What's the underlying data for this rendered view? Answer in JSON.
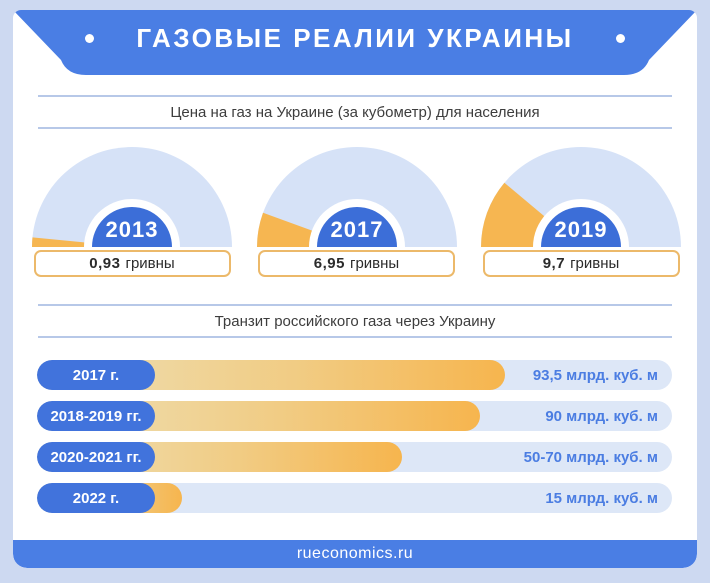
{
  "header": {
    "title": "ГАЗОВЫЕ РЕАЛИИ УКРАИНЫ"
  },
  "sections": {
    "prices": {
      "title": "Цена на газ на Украине (за кубометр) для населения",
      "gauges": [
        {
          "year": "2013",
          "value": "0,93",
          "unit": "гривны",
          "angle_deg": 5.5
        },
        {
          "year": "2017",
          "value": "6,95",
          "unit": "гривны",
          "angle_deg": 20
        },
        {
          "year": "2019",
          "value": "9,7",
          "unit": "гривны",
          "angle_deg": 40
        }
      ]
    },
    "transit": {
      "title": "Транзит российского газа через Украину",
      "bars": [
        {
          "label": "2017 г.",
          "value": "93,5 млрд. куб. м",
          "fill_pct": 73.7
        },
        {
          "label": "2018-2019 гг.",
          "value": "90 млрд. куб. м",
          "fill_pct": 69.8
        },
        {
          "label": "2020-2021 гг.",
          "value": "50-70 млрд. куб. м",
          "fill_pct": 57.5
        },
        {
          "label": "2022 г.",
          "value": "15 млрд. куб. м",
          "fill_pct": 22.8
        }
      ]
    }
  },
  "footer": {
    "site": "rueconomics.ru"
  },
  "colors": {
    "background": "#cdd9f1",
    "card": "#ffffff",
    "primary_blue": "#4a7ee4",
    "pill_blue": "#4173dc",
    "gauge_inner_blue": "#3c6ed8",
    "gauge_light_blue": "#d6e2f7",
    "track_light_blue": "#dde7f7",
    "orange": "#f6b54e",
    "orange_pale": "#ede0b6",
    "value_box_border": "#ecb96a",
    "divider": "#b7c8e8",
    "bar_value_text": "#4b7de2"
  },
  "chart_data": [
    {
      "type": "pie",
      "subtype": "semi-donut-gauges",
      "title": "Цена на газ на Украине (за кубометр) для населения",
      "categories": [
        "2013",
        "2017",
        "2019"
      ],
      "values": [
        0.93,
        6.95,
        9.7
      ],
      "value_labels": [
        "0,93 гривны",
        "6,95 гривны",
        "9,7 гривны"
      ],
      "unit": "гривны за кубометр",
      "legend_position": "none"
    },
    {
      "type": "bar",
      "orientation": "horizontal",
      "title": "Транзит российского газа через Украину",
      "categories": [
        "2017 г.",
        "2018-2019 гг.",
        "2020-2021 гг.",
        "2022 г."
      ],
      "values": [
        93.5,
        90,
        60,
        15
      ],
      "value_labels": [
        "93,5 млрд. куб. м",
        "90 млрд. куб. м",
        "50-70 млрд. куб. м",
        "15 млрд. куб. м"
      ],
      "unit": "млрд. куб. м",
      "xlim": [
        0,
        127
      ],
      "grid": false,
      "legend_position": "none"
    }
  ]
}
